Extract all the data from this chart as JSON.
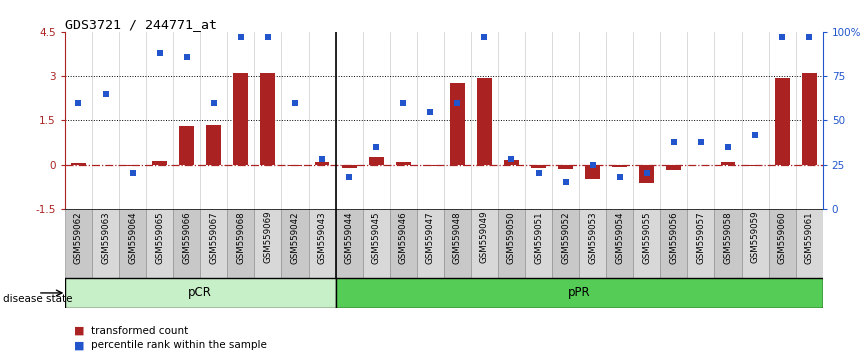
{
  "title": "GDS3721 / 244771_at",
  "samples": [
    "GSM559062",
    "GSM559063",
    "GSM559064",
    "GSM559065",
    "GSM559066",
    "GSM559067",
    "GSM559068",
    "GSM559069",
    "GSM559042",
    "GSM559043",
    "GSM559044",
    "GSM559045",
    "GSM559046",
    "GSM559047",
    "GSM559048",
    "GSM559049",
    "GSM559050",
    "GSM559051",
    "GSM559052",
    "GSM559053",
    "GSM559054",
    "GSM559055",
    "GSM559056",
    "GSM559057",
    "GSM559058",
    "GSM559059",
    "GSM559060",
    "GSM559061"
  ],
  "transformed_count": [
    0.05,
    0.0,
    -0.05,
    0.12,
    1.3,
    1.35,
    3.1,
    3.12,
    -0.05,
    0.08,
    -0.1,
    0.25,
    0.08,
    -0.05,
    2.75,
    2.95,
    0.15,
    -0.12,
    -0.15,
    -0.5,
    -0.08,
    -0.62,
    -0.18,
    0.0,
    0.08,
    -0.05,
    2.95,
    3.1
  ],
  "percentile_rank": [
    60,
    65,
    20,
    88,
    86,
    60,
    97,
    97,
    60,
    28,
    18,
    35,
    60,
    55,
    60,
    97,
    28,
    20,
    15,
    25,
    18,
    20,
    38,
    38,
    35,
    42,
    97,
    97
  ],
  "pCR_count": 10,
  "pPR_count": 18,
  "bar_color": "#aa2222",
  "square_color": "#2255cc",
  "bg_color_pCR": "#c8f0c8",
  "bg_color_pPR": "#55cc55",
  "ylim_left": [
    -1.5,
    4.5
  ],
  "ylim_right": [
    0,
    100
  ],
  "yticks_left": [
    -1.5,
    0.0,
    1.5,
    3.0,
    4.5
  ],
  "yticks_right": [
    0,
    25,
    50,
    75,
    100
  ],
  "bar_width": 0.55
}
